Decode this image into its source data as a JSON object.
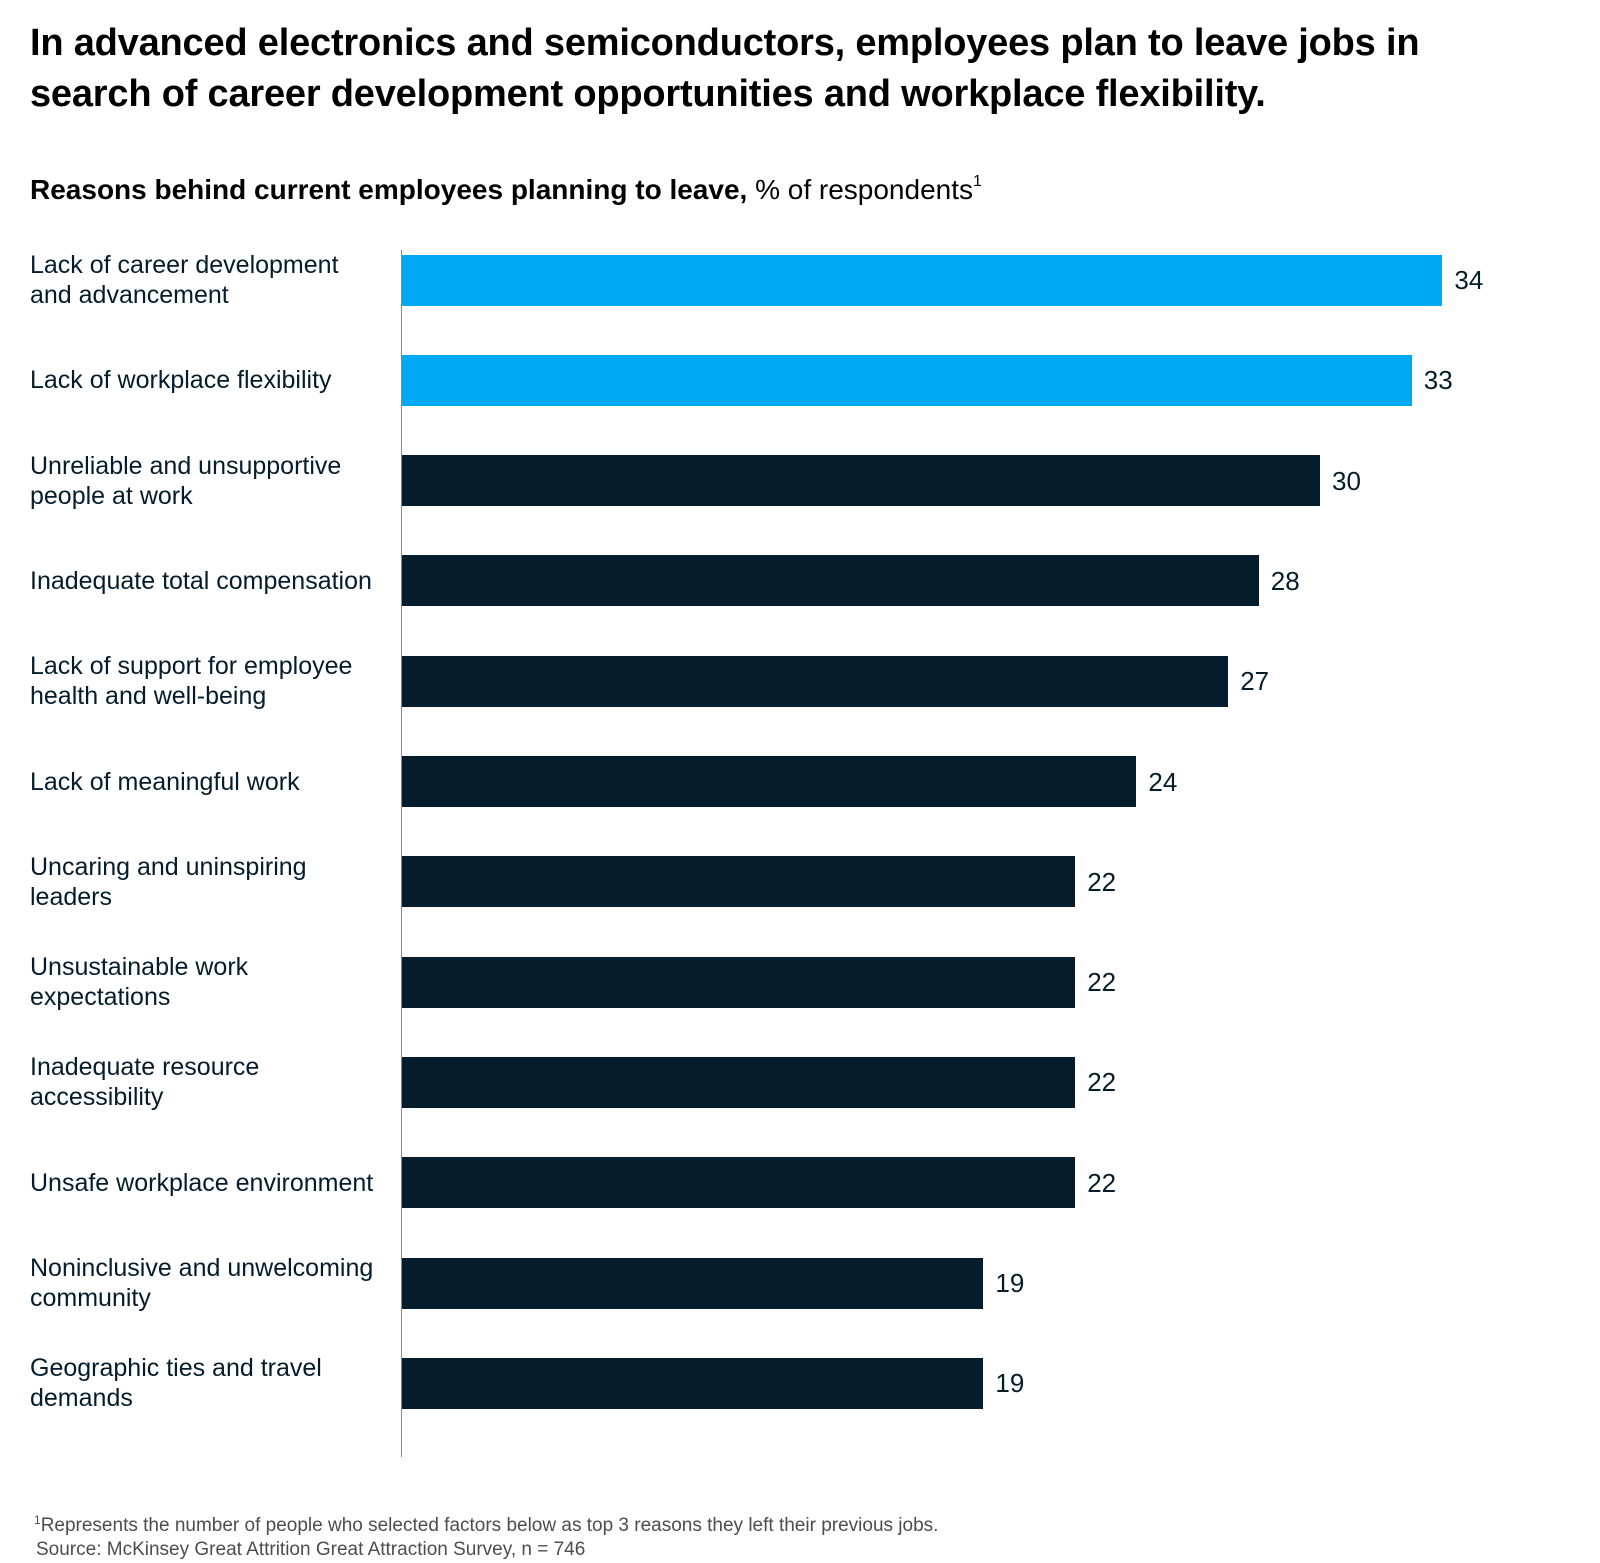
{
  "title": "In advanced electronics and semiconductors, employees plan to leave jobs in search of career development opportunities and workplace flexibility.",
  "subtitle": {
    "bold": "Reasons behind current employees planning to leave,",
    "light": "% of respondents",
    "sup": "1"
  },
  "colors": {
    "highlight": "#00a9f4",
    "default": "#051c2c",
    "axis": "#8a8a8a"
  },
  "chart_data": {
    "type": "bar",
    "orientation": "horizontal",
    "title": "Reasons behind current employees planning to leave, % of respondents",
    "xlabel": "% of respondents",
    "ylabel": "",
    "xlim": [
      0,
      34
    ],
    "grid": false,
    "categories": [
      "Lack of career development and advancement",
      "Lack of workplace flexibility",
      "Unreliable and unsupportive people at work",
      "Inadequate total compensation",
      "Lack of support for employee health and well-being",
      "Lack of meaningful work",
      "Uncaring and uninspiring leaders",
      "Unsustainable work expectations",
      "Inadequate resource accessibility",
      "Unsafe workplace environment",
      "Noninclusive and unwelcoming community",
      "Geographic ties and travel demands"
    ],
    "values": [
      34,
      33,
      30,
      28,
      27,
      24,
      22,
      22,
      22,
      22,
      19,
      19
    ],
    "highlighted": [
      true,
      true,
      false,
      false,
      false,
      false,
      false,
      false,
      false,
      false,
      false,
      false
    ]
  },
  "footnote": {
    "sup": "1",
    "note": "Represents the number of people who selected factors below as top 3 reasons they left their previous jobs.",
    "source": "Source: McKinsey Great Attrition Great Attraction Survey, n = 746"
  }
}
